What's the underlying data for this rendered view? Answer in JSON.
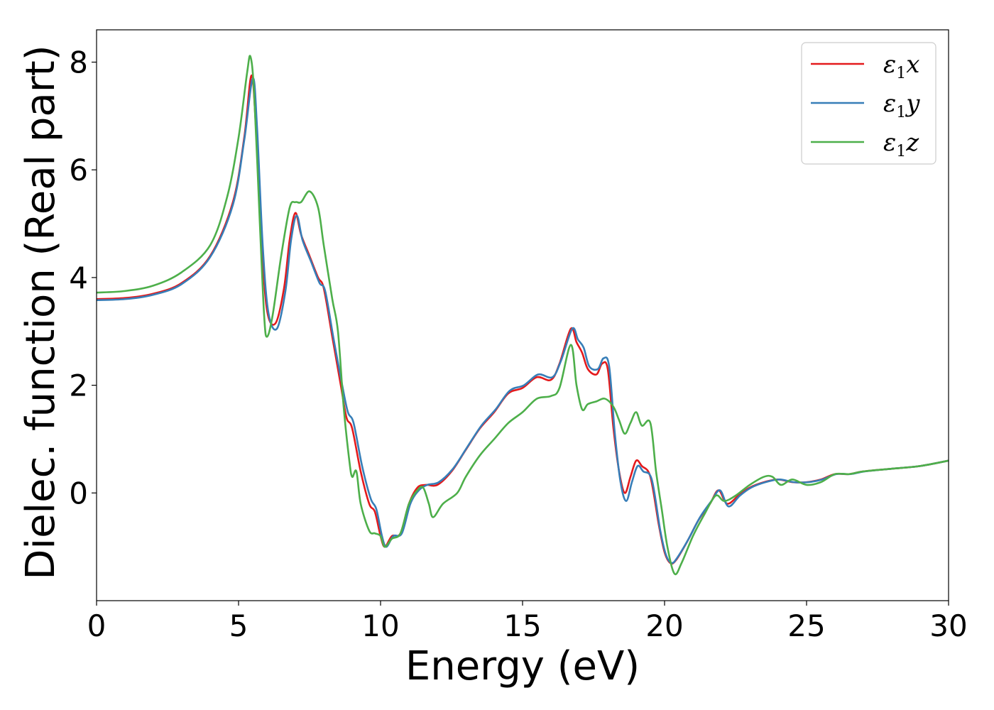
{
  "chart_data": {
    "type": "line",
    "xlabel": "Energy (eV)",
    "ylabel": "Dielec. function (Real part)",
    "xlim": [
      0,
      30
    ],
    "ylim": [
      -2.0,
      8.6
    ],
    "xticks": [
      0,
      5,
      10,
      15,
      20,
      25,
      30
    ],
    "yticks": [
      0,
      2,
      4,
      6,
      8
    ],
    "grid": false,
    "legend_position": "top-right",
    "series": [
      {
        "name": "ε₁x",
        "legend_main": "ε",
        "legend_sub": "1",
        "legend_tail": "x",
        "color": "#e41a1c",
        "points": [
          [
            0,
            3.6
          ],
          [
            1,
            3.62
          ],
          [
            2,
            3.7
          ],
          [
            3,
            3.9
          ],
          [
            4,
            4.4
          ],
          [
            4.8,
            5.4
          ],
          [
            5.2,
            6.6
          ],
          [
            5.45,
            7.75
          ],
          [
            5.6,
            6.9
          ],
          [
            5.8,
            4.8
          ],
          [
            6.0,
            3.4
          ],
          [
            6.3,
            3.15
          ],
          [
            6.6,
            3.8
          ],
          [
            6.8,
            4.7
          ],
          [
            7.0,
            5.2
          ],
          [
            7.2,
            4.8
          ],
          [
            7.5,
            4.4
          ],
          [
            7.8,
            4.0
          ],
          [
            8.0,
            3.8
          ],
          [
            8.3,
            2.9
          ],
          [
            8.6,
            2.0
          ],
          [
            8.8,
            1.4
          ],
          [
            9.0,
            1.2
          ],
          [
            9.3,
            0.4
          ],
          [
            9.6,
            -0.2
          ],
          [
            9.8,
            -0.35
          ],
          [
            10.0,
            -0.8
          ],
          [
            10.15,
            -1.0
          ],
          [
            10.4,
            -0.8
          ],
          [
            10.7,
            -0.75
          ],
          [
            11.0,
            -0.2
          ],
          [
            11.3,
            0.1
          ],
          [
            11.6,
            0.15
          ],
          [
            12.0,
            0.15
          ],
          [
            12.5,
            0.4
          ],
          [
            13.0,
            0.8
          ],
          [
            13.5,
            1.2
          ],
          [
            14.0,
            1.5
          ],
          [
            14.5,
            1.85
          ],
          [
            15.0,
            1.95
          ],
          [
            15.5,
            2.15
          ],
          [
            16.0,
            2.1
          ],
          [
            16.3,
            2.4
          ],
          [
            16.7,
            3.05
          ],
          [
            16.9,
            2.8
          ],
          [
            17.1,
            2.6
          ],
          [
            17.3,
            2.3
          ],
          [
            17.6,
            2.2
          ],
          [
            17.8,
            2.4
          ],
          [
            18.0,
            2.3
          ],
          [
            18.2,
            1.2
          ],
          [
            18.4,
            0.4
          ],
          [
            18.6,
            0.0
          ],
          [
            18.8,
            0.3
          ],
          [
            19.0,
            0.6
          ],
          [
            19.2,
            0.5
          ],
          [
            19.5,
            0.3
          ],
          [
            19.8,
            -0.6
          ],
          [
            20.0,
            -1.1
          ],
          [
            20.2,
            -1.3
          ],
          [
            20.4,
            -1.25
          ],
          [
            20.8,
            -0.9
          ],
          [
            21.2,
            -0.5
          ],
          [
            21.6,
            -0.2
          ],
          [
            21.9,
            0.05
          ],
          [
            22.2,
            -0.2
          ],
          [
            22.6,
            -0.05
          ],
          [
            23.0,
            0.1
          ],
          [
            23.5,
            0.2
          ],
          [
            24.0,
            0.25
          ],
          [
            24.5,
            0.2
          ],
          [
            25.0,
            0.2
          ],
          [
            25.5,
            0.25
          ],
          [
            26.0,
            0.35
          ],
          [
            26.5,
            0.35
          ],
          [
            27.0,
            0.4
          ],
          [
            28.0,
            0.45
          ],
          [
            29.0,
            0.5
          ],
          [
            30.0,
            0.6
          ]
        ]
      },
      {
        "name": "ε₁y",
        "legend_main": "ε",
        "legend_sub": "1",
        "legend_tail": "y",
        "color": "#377eb8",
        "points": [
          [
            0,
            3.58
          ],
          [
            1,
            3.6
          ],
          [
            2,
            3.68
          ],
          [
            3,
            3.88
          ],
          [
            4,
            4.38
          ],
          [
            4.8,
            5.35
          ],
          [
            5.2,
            6.55
          ],
          [
            5.5,
            7.7
          ],
          [
            5.65,
            6.8
          ],
          [
            5.85,
            4.6
          ],
          [
            6.05,
            3.35
          ],
          [
            6.35,
            3.05
          ],
          [
            6.65,
            3.75
          ],
          [
            6.85,
            4.7
          ],
          [
            7.05,
            5.15
          ],
          [
            7.25,
            4.7
          ],
          [
            7.55,
            4.3
          ],
          [
            7.85,
            3.9
          ],
          [
            8.05,
            3.75
          ],
          [
            8.35,
            2.85
          ],
          [
            8.65,
            2.0
          ],
          [
            8.85,
            1.5
          ],
          [
            9.05,
            1.3
          ],
          [
            9.35,
            0.5
          ],
          [
            9.65,
            -0.1
          ],
          [
            9.85,
            -0.3
          ],
          [
            10.05,
            -0.8
          ],
          [
            10.2,
            -1.0
          ],
          [
            10.45,
            -0.8
          ],
          [
            10.75,
            -0.75
          ],
          [
            11.05,
            -0.2
          ],
          [
            11.35,
            0.05
          ],
          [
            11.65,
            0.15
          ],
          [
            12.05,
            0.2
          ],
          [
            12.55,
            0.45
          ],
          [
            13.05,
            0.85
          ],
          [
            13.55,
            1.25
          ],
          [
            14.05,
            1.55
          ],
          [
            14.55,
            1.9
          ],
          [
            15.05,
            2.0
          ],
          [
            15.55,
            2.2
          ],
          [
            16.05,
            2.15
          ],
          [
            16.35,
            2.45
          ],
          [
            16.75,
            3.05
          ],
          [
            16.95,
            2.85
          ],
          [
            17.15,
            2.7
          ],
          [
            17.35,
            2.35
          ],
          [
            17.65,
            2.3
          ],
          [
            17.85,
            2.5
          ],
          [
            18.05,
            2.35
          ],
          [
            18.25,
            1.1
          ],
          [
            18.45,
            0.2
          ],
          [
            18.65,
            -0.15
          ],
          [
            18.85,
            0.2
          ],
          [
            19.05,
            0.5
          ],
          [
            19.25,
            0.4
          ],
          [
            19.55,
            0.25
          ],
          [
            19.85,
            -0.7
          ],
          [
            20.05,
            -1.15
          ],
          [
            20.25,
            -1.3
          ],
          [
            20.45,
            -1.2
          ],
          [
            20.85,
            -0.85
          ],
          [
            21.25,
            -0.45
          ],
          [
            21.65,
            -0.15
          ],
          [
            21.95,
            0.05
          ],
          [
            22.25,
            -0.25
          ],
          [
            22.65,
            -0.05
          ],
          [
            23.05,
            0.1
          ],
          [
            23.55,
            0.2
          ],
          [
            24.05,
            0.25
          ],
          [
            24.55,
            0.2
          ],
          [
            25.05,
            0.2
          ],
          [
            25.55,
            0.25
          ],
          [
            26.05,
            0.35
          ],
          [
            26.55,
            0.35
          ],
          [
            27.05,
            0.4
          ],
          [
            28.0,
            0.45
          ],
          [
            29.0,
            0.5
          ],
          [
            30.0,
            0.6
          ]
        ]
      },
      {
        "name": "ε₁z",
        "legend_main": "ε",
        "legend_sub": "1",
        "legend_tail": "z",
        "color": "#4daf4a",
        "points": [
          [
            0,
            3.72
          ],
          [
            1,
            3.75
          ],
          [
            2,
            3.85
          ],
          [
            3,
            4.1
          ],
          [
            4,
            4.6
          ],
          [
            4.6,
            5.5
          ],
          [
            5.0,
            6.6
          ],
          [
            5.3,
            7.8
          ],
          [
            5.42,
            8.1
          ],
          [
            5.55,
            7.4
          ],
          [
            5.75,
            5.0
          ],
          [
            5.9,
            3.3
          ],
          [
            6.0,
            2.9
          ],
          [
            6.2,
            3.3
          ],
          [
            6.5,
            4.4
          ],
          [
            6.8,
            5.3
          ],
          [
            7.0,
            5.4
          ],
          [
            7.2,
            5.4
          ],
          [
            7.5,
            5.6
          ],
          [
            7.8,
            5.3
          ],
          [
            8.0,
            4.6
          ],
          [
            8.3,
            3.6
          ],
          [
            8.5,
            3.0
          ],
          [
            8.7,
            1.6
          ],
          [
            8.9,
            0.6
          ],
          [
            9.0,
            0.3
          ],
          [
            9.15,
            0.4
          ],
          [
            9.3,
            -0.2
          ],
          [
            9.6,
            -0.7
          ],
          [
            9.8,
            -0.75
          ],
          [
            10.0,
            -0.8
          ],
          [
            10.15,
            -1.0
          ],
          [
            10.4,
            -0.85
          ],
          [
            10.7,
            -0.75
          ],
          [
            11.0,
            -0.2
          ],
          [
            11.3,
            0.05
          ],
          [
            11.5,
            0.1
          ],
          [
            11.7,
            -0.2
          ],
          [
            11.85,
            -0.45
          ],
          [
            12.2,
            -0.2
          ],
          [
            12.7,
            0.0
          ],
          [
            13.0,
            0.3
          ],
          [
            13.5,
            0.7
          ],
          [
            14.0,
            1.0
          ],
          [
            14.5,
            1.3
          ],
          [
            15.0,
            1.5
          ],
          [
            15.5,
            1.75
          ],
          [
            16.0,
            1.8
          ],
          [
            16.3,
            1.95
          ],
          [
            16.7,
            2.75
          ],
          [
            16.9,
            2.0
          ],
          [
            17.1,
            1.55
          ],
          [
            17.3,
            1.65
          ],
          [
            17.6,
            1.7
          ],
          [
            17.9,
            1.75
          ],
          [
            18.2,
            1.6
          ],
          [
            18.4,
            1.35
          ],
          [
            18.6,
            1.1
          ],
          [
            18.8,
            1.3
          ],
          [
            19.0,
            1.5
          ],
          [
            19.2,
            1.25
          ],
          [
            19.5,
            1.3
          ],
          [
            19.7,
            0.4
          ],
          [
            19.9,
            -0.3
          ],
          [
            20.1,
            -1.0
          ],
          [
            20.35,
            -1.5
          ],
          [
            20.6,
            -1.3
          ],
          [
            21.0,
            -0.8
          ],
          [
            21.4,
            -0.4
          ],
          [
            21.8,
            -0.05
          ],
          [
            22.1,
            -0.15
          ],
          [
            22.5,
            -0.05
          ],
          [
            23.0,
            0.15
          ],
          [
            23.5,
            0.3
          ],
          [
            23.8,
            0.3
          ],
          [
            24.1,
            0.15
          ],
          [
            24.5,
            0.25
          ],
          [
            25.0,
            0.15
          ],
          [
            25.5,
            0.2
          ],
          [
            26.0,
            0.35
          ],
          [
            26.5,
            0.35
          ],
          [
            27.0,
            0.4
          ],
          [
            28.0,
            0.45
          ],
          [
            29.0,
            0.5
          ],
          [
            30.0,
            0.6
          ]
        ]
      }
    ]
  }
}
